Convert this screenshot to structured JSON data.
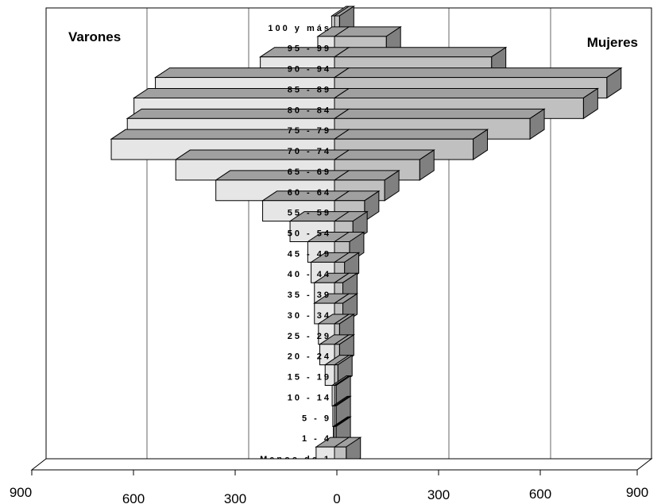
{
  "chart_data": {
    "type": "bar",
    "orientation": "population-pyramid",
    "left_label": "Varones",
    "right_label": "Mujeres",
    "categories": [
      "100 y más",
      "95-99",
      "90-94",
      "85-89",
      "80-84",
      "75-79",
      "70-74",
      "65-69",
      "60-64",
      "55-59",
      "50-54",
      "45-49",
      "40-44",
      "35-39",
      "30-34",
      "25-29",
      "20-24",
      "15-19",
      "10-14",
      "5-9",
      "1-4",
      "Menos de 1"
    ],
    "category_display": [
      "100 y más",
      "95 - 99",
      "90 - 94",
      "85 - 89",
      "80 - 84",
      "75 - 79",
      "70 - 74",
      "65 - 69",
      "60 - 64",
      "55 - 59",
      "50 - 54",
      "45 - 49",
      "40 - 44",
      "35 - 39",
      "30 - 34",
      "25 - 29",
      "20 - 24",
      "15 - 19",
      "10 - 14",
      "5 - 9",
      "1 - 4",
      "Menos de 1"
    ],
    "series": [
      {
        "name": "Varones",
        "values": [
          8,
          50,
          222,
          536,
          600,
          620,
          668,
          475,
          355,
          215,
          133,
          80,
          70,
          60,
          60,
          48,
          44,
          28,
          7,
          5,
          3,
          55
        ]
      },
      {
        "name": "Mujeres",
        "values": [
          15,
          155,
          470,
          815,
          745,
          585,
          415,
          255,
          150,
          90,
          55,
          45,
          30,
          25,
          25,
          15,
          15,
          10,
          5,
          5,
          5,
          35
        ]
      }
    ],
    "x_ticks": [
      "900",
      "600",
      "300",
      "0",
      "300",
      "600",
      "900"
    ],
    "xlim": [
      -900,
      900
    ],
    "grid": true,
    "colors": {
      "male_face": "#e6e6e6",
      "female_face": "#c0c0c0",
      "side": "#808080",
      "top": "#a0a0a0",
      "outline": "#000000"
    }
  }
}
